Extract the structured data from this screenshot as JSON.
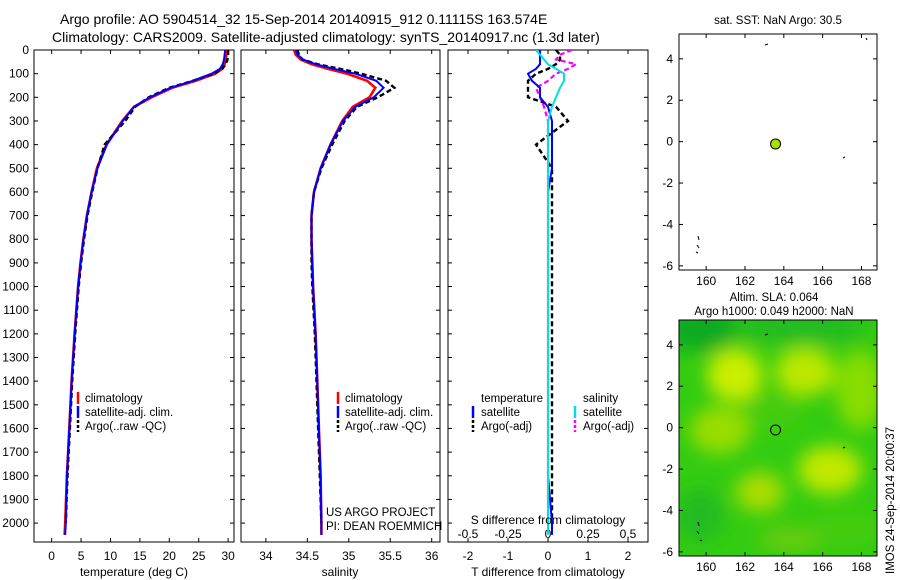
{
  "header": {
    "line1": "Argo profile: AO 5904514_32 15-Sep-2014 20140915_912 0.11115S 163.574E",
    "line2": "Climatology: CARS2009. Satellite-adjusted climatology: synTS_20140917.nc (1.3d later)"
  },
  "project": {
    "line1": "US ARGO PROJECT",
    "line2": "PI: DEAN ROEMMICH"
  },
  "stamp": "IMOS 24-Sep-2014 20:00:37",
  "colors": {
    "clim": "#ff0000",
    "sat": "#0000ff",
    "argo": "#000000",
    "sat_s": "#00e0e0",
    "argo_s": "#ff00ff",
    "marker": "#a8e000",
    "map_base": "#33cc11"
  },
  "legend": {
    "climatology": "climatology",
    "satellite_adj": "satellite-adj. clim.",
    "argo_raw": "Argo(..raw -QC)"
  },
  "diff_legend": {
    "temperature": "temperature",
    "salinity": "salinity",
    "satellite": "satellite",
    "argo_adj": "Argo(-adj)"
  },
  "chart_data": [
    {
      "type": "line",
      "title": "",
      "xlabel": "temperature (deg C)",
      "ylabel": "",
      "xlim": [
        -3,
        31
      ],
      "ylim": [
        2080,
        0
      ],
      "xticks": [
        "0",
        "5",
        "10",
        "15",
        "20",
        "25",
        "30"
      ],
      "yticks": [
        "0",
        "100",
        "200",
        "300",
        "400",
        "500",
        "600",
        "700",
        "800",
        "900",
        "1000",
        "1100",
        "1200",
        "1300",
        "1400",
        "1500",
        "1600",
        "1700",
        "1800",
        "1900",
        "2000"
      ],
      "depth": [
        0,
        20,
        40,
        60,
        80,
        100,
        130,
        160,
        200,
        240,
        300,
        400,
        500,
        600,
        700,
        800,
        900,
        1000,
        1200,
        1400,
        1600,
        1800,
        2000,
        2050
      ],
      "series": [
        {
          "name": "climatology",
          "values": [
            29.8,
            29.7,
            29.6,
            29.4,
            29.0,
            27.8,
            24.5,
            20.5,
            17.0,
            14.0,
            12.0,
            9.3,
            7.7,
            6.8,
            6.0,
            5.4,
            4.9,
            4.5,
            3.9,
            3.4,
            3.0,
            2.6,
            2.3,
            2.2
          ]
        },
        {
          "name": "satellite-adj. clim.",
          "values": [
            29.5,
            29.4,
            29.3,
            29.1,
            28.6,
            27.2,
            24.0,
            20.2,
            16.7,
            14.0,
            12.1,
            9.4,
            7.8,
            6.8,
            6.0,
            5.4,
            4.9,
            4.5,
            3.9,
            3.4,
            3.0,
            2.6,
            2.4,
            2.3
          ]
        },
        {
          "name": "Argo(..raw -QC)",
          "values": [
            30.0,
            30.0,
            29.9,
            29.6,
            29.0,
            27.5,
            24.0,
            20.0,
            16.5,
            14.2,
            12.5,
            9.0,
            7.8,
            6.9,
            6.1,
            5.5,
            5.0,
            4.6,
            4.0,
            3.5,
            3.1,
            2.7,
            2.4,
            null
          ]
        }
      ]
    },
    {
      "type": "line",
      "title": "",
      "xlabel": "salinity",
      "ylabel": "",
      "xlim": [
        33.7,
        36.1
      ],
      "ylim": [
        2080,
        0
      ],
      "xticks": [
        "34",
        "34.5",
        "35",
        "35.5",
        "36"
      ],
      "depth": [
        0,
        20,
        40,
        60,
        80,
        100,
        130,
        160,
        200,
        240,
        300,
        400,
        500,
        600,
        700,
        800,
        900,
        1000,
        1200,
        1400,
        1600,
        1800,
        2000,
        2050
      ],
      "series": [
        {
          "name": "climatology",
          "values": [
            34.34,
            34.36,
            34.42,
            34.55,
            34.75,
            34.98,
            35.22,
            35.32,
            35.25,
            35.05,
            34.92,
            34.78,
            34.66,
            34.58,
            34.55,
            34.55,
            34.56,
            34.57,
            34.6,
            34.62,
            34.64,
            34.66,
            34.67,
            34.67
          ]
        },
        {
          "name": "satellite-adj. clim.",
          "values": [
            34.36,
            34.38,
            34.45,
            34.6,
            34.82,
            35.08,
            35.33,
            35.42,
            35.3,
            35.08,
            34.93,
            34.78,
            34.66,
            34.58,
            34.55,
            34.55,
            34.56,
            34.57,
            34.6,
            34.62,
            34.64,
            34.66,
            34.67,
            34.67
          ]
        },
        {
          "name": "Argo(..raw -QC)",
          "values": [
            34.38,
            34.4,
            34.44,
            34.62,
            34.9,
            35.15,
            35.45,
            35.55,
            35.35,
            35.1,
            34.95,
            34.8,
            34.67,
            34.58,
            34.55,
            34.55,
            34.55,
            34.56,
            34.59,
            34.61,
            34.63,
            34.65,
            34.67,
            null
          ]
        }
      ]
    },
    {
      "type": "line",
      "title": "",
      "xlabel": "T difference from climatology",
      "xlabel_top": "S difference from climatology",
      "xlim": [
        -2.5,
        2.5
      ],
      "ylim": [
        2080,
        0
      ],
      "xticks": [
        "-2",
        "-1",
        "0",
        "1",
        "2"
      ],
      "xticks_top": [
        "-0.5",
        "-0.25",
        "0",
        "0.25",
        "0.5"
      ],
      "depth": [
        0,
        20,
        40,
        60,
        80,
        100,
        130,
        160,
        200,
        240,
        300,
        400,
        500,
        600,
        700,
        800,
        900,
        1000,
        1200,
        1400,
        1600,
        1800,
        2000,
        2050
      ],
      "series": [
        {
          "name": "temperature satellite",
          "values": [
            -0.2,
            -0.2,
            -0.2,
            -0.2,
            -0.3,
            -0.5,
            -0.4,
            -0.2,
            -0.2,
            0.0,
            0.1,
            0.1,
            0.1,
            0.0,
            0.0,
            0.0,
            0.0,
            0.0,
            0.0,
            0.0,
            0.0,
            0.0,
            0.1,
            0.1
          ]
        },
        {
          "name": "temperature Argo(-adj)",
          "values": [
            0.2,
            0.3,
            0.3,
            0.2,
            0.0,
            -0.3,
            -0.5,
            -0.5,
            -0.5,
            0.2,
            0.5,
            -0.3,
            0.1,
            0.1,
            0.1,
            0.1,
            0.1,
            0.1,
            0.1,
            0.1,
            0.1,
            0.1,
            0.1,
            null
          ]
        },
        {
          "name": "salinity satellite",
          "values": [
            -0.3,
            -0.2,
            -0.1,
            0.0,
            0.2,
            0.4,
            0.4,
            0.3,
            0.2,
            0.1,
            0.0,
            0.0,
            0.0,
            0.0,
            0.0,
            0.0,
            0.0,
            0.0,
            0.0,
            0.0,
            0.0,
            0.0,
            0.0,
            0.0
          ]
        },
        {
          "name": "salinity Argo(-adj)",
          "values": [
            0.6,
            0.3,
            0.2,
            0.7,
            0.5,
            0.2,
            0.0,
            -0.3,
            -0.2,
            -0.1,
            0.0,
            0.0,
            0.0,
            0.0,
            0.0,
            0.0,
            0.0,
            0.0,
            0.0,
            0.0,
            0.0,
            0.0,
            0.0,
            null
          ]
        }
      ]
    },
    {
      "type": "scatter",
      "title": "sat. SST: NaN Argo: 30.5",
      "xlim": [
        158.6,
        168.8
      ],
      "ylim": [
        -6.2,
        5.2
      ],
      "xticks": [
        "160",
        "162",
        "164",
        "166",
        "168"
      ],
      "yticks": [
        "4",
        "2",
        "0",
        "-2",
        "-4",
        "-6"
      ],
      "points": [
        {
          "x": 163.574,
          "y": -0.111,
          "label": "Argo float"
        }
      ]
    },
    {
      "type": "heatmap",
      "title": "Altim. SLA: 0.064",
      "subtitle": "Argo h1000: 0.049 h2000: NaN",
      "xlim": [
        158.6,
        168.8
      ],
      "ylim": [
        -6.2,
        5.2
      ],
      "xticks": [
        "160",
        "162",
        "164",
        "166",
        "168"
      ],
      "yticks": [
        "4",
        "2",
        "0",
        "-2",
        "-4",
        "-6"
      ],
      "points": [
        {
          "x": 163.574,
          "y": -0.111,
          "label": "Argo float"
        }
      ]
    }
  ]
}
